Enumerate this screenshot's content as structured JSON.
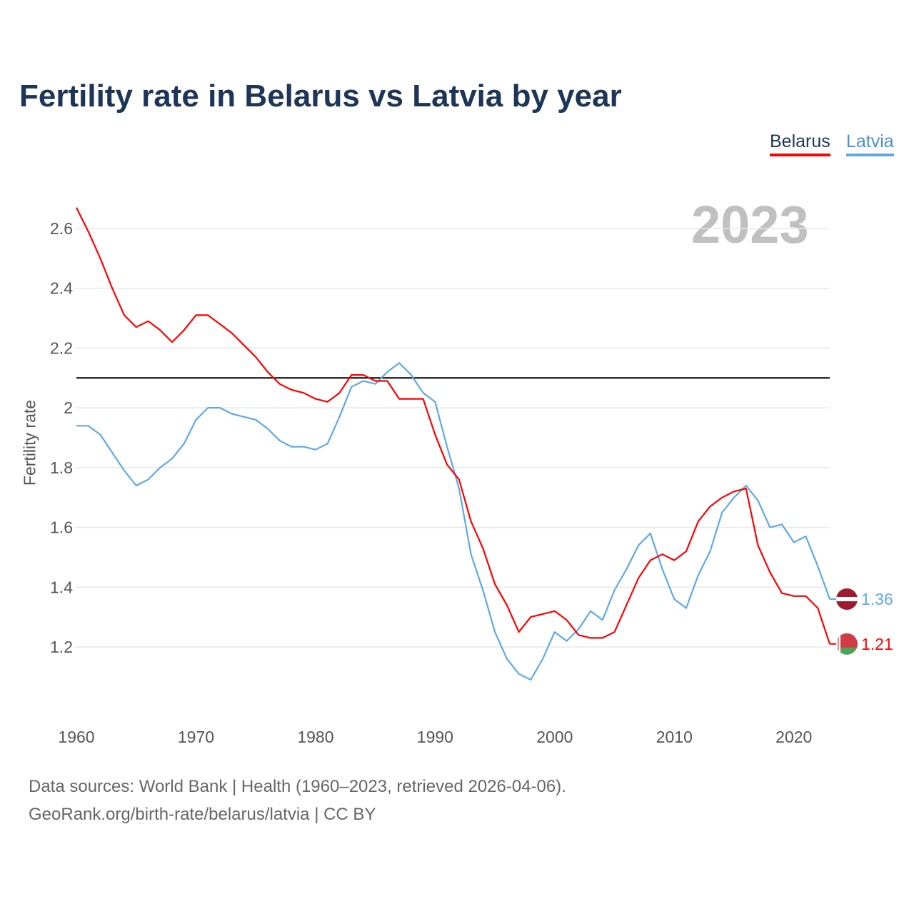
{
  "title": "Fertility rate in Belarus vs Latvia by year",
  "year_label": "2023",
  "footer": {
    "line1": "Data sources: World Bank | Health (1960–2023, retrieved 2026-04-06).",
    "line2": "GeoRank.org/birth-rate/belarus/latvia | CC BY"
  },
  "chart_data": {
    "type": "line",
    "title": "Fertility rate in Belarus vs Latvia by year",
    "xlabel": "",
    "ylabel": "Fertility rate",
    "xlim": [
      1960,
      2023
    ],
    "ylim": [
      1.0,
      2.72
    ],
    "xticks": [
      1960,
      1970,
      1980,
      1990,
      2000,
      2010,
      2020
    ],
    "yticks": [
      1.2,
      1.4,
      1.6,
      1.8,
      2,
      2.2,
      2.4,
      2.6
    ],
    "ytick_labels": [
      "1.2",
      "1.4",
      "1.6",
      "1.8",
      "2",
      "2.2",
      "2.4",
      "2.6"
    ],
    "reference_line": 2.1,
    "grid": true,
    "legend": "top-right",
    "series": [
      {
        "name": "Belarus",
        "color": "#ff0000",
        "end_label": "1.21",
        "flag": "belarus-flag",
        "values": [
          2.67,
          2.59,
          2.5,
          2.4,
          2.31,
          2.27,
          2.29,
          2.26,
          2.22,
          2.26,
          2.31,
          2.31,
          2.28,
          2.25,
          2.21,
          2.17,
          2.12,
          2.08,
          2.06,
          2.05,
          2.03,
          2.02,
          2.05,
          2.11,
          2.11,
          2.09,
          2.09,
          2.03,
          2.03,
          2.03,
          1.91,
          1.81,
          1.76,
          1.62,
          1.53,
          1.41,
          1.34,
          1.25,
          1.3,
          1.31,
          1.32,
          1.29,
          1.24,
          1.23,
          1.23,
          1.25,
          1.34,
          1.43,
          1.49,
          1.51,
          1.49,
          1.52,
          1.62,
          1.67,
          1.7,
          1.72,
          1.73,
          1.54,
          1.45,
          1.38,
          1.37,
          1.37,
          1.33,
          1.21
        ]
      },
      {
        "name": "Latvia",
        "color": "#5fa8e8",
        "end_label": "1.36",
        "flag": "latvia-flag",
        "values": [
          1.94,
          1.94,
          1.91,
          1.85,
          1.79,
          1.74,
          1.76,
          1.8,
          1.83,
          1.88,
          1.96,
          2.0,
          2.0,
          1.98,
          1.97,
          1.96,
          1.93,
          1.89,
          1.87,
          1.87,
          1.86,
          1.88,
          1.97,
          2.07,
          2.09,
          2.08,
          2.12,
          2.15,
          2.11,
          2.05,
          2.02,
          1.87,
          1.73,
          1.51,
          1.39,
          1.25,
          1.16,
          1.11,
          1.09,
          1.16,
          1.25,
          1.22,
          1.26,
          1.32,
          1.29,
          1.39,
          1.46,
          1.54,
          1.58,
          1.46,
          1.36,
          1.33,
          1.44,
          1.52,
          1.65,
          1.7,
          1.74,
          1.69,
          1.6,
          1.61,
          1.55,
          1.57,
          1.47,
          1.36
        ]
      }
    ]
  }
}
